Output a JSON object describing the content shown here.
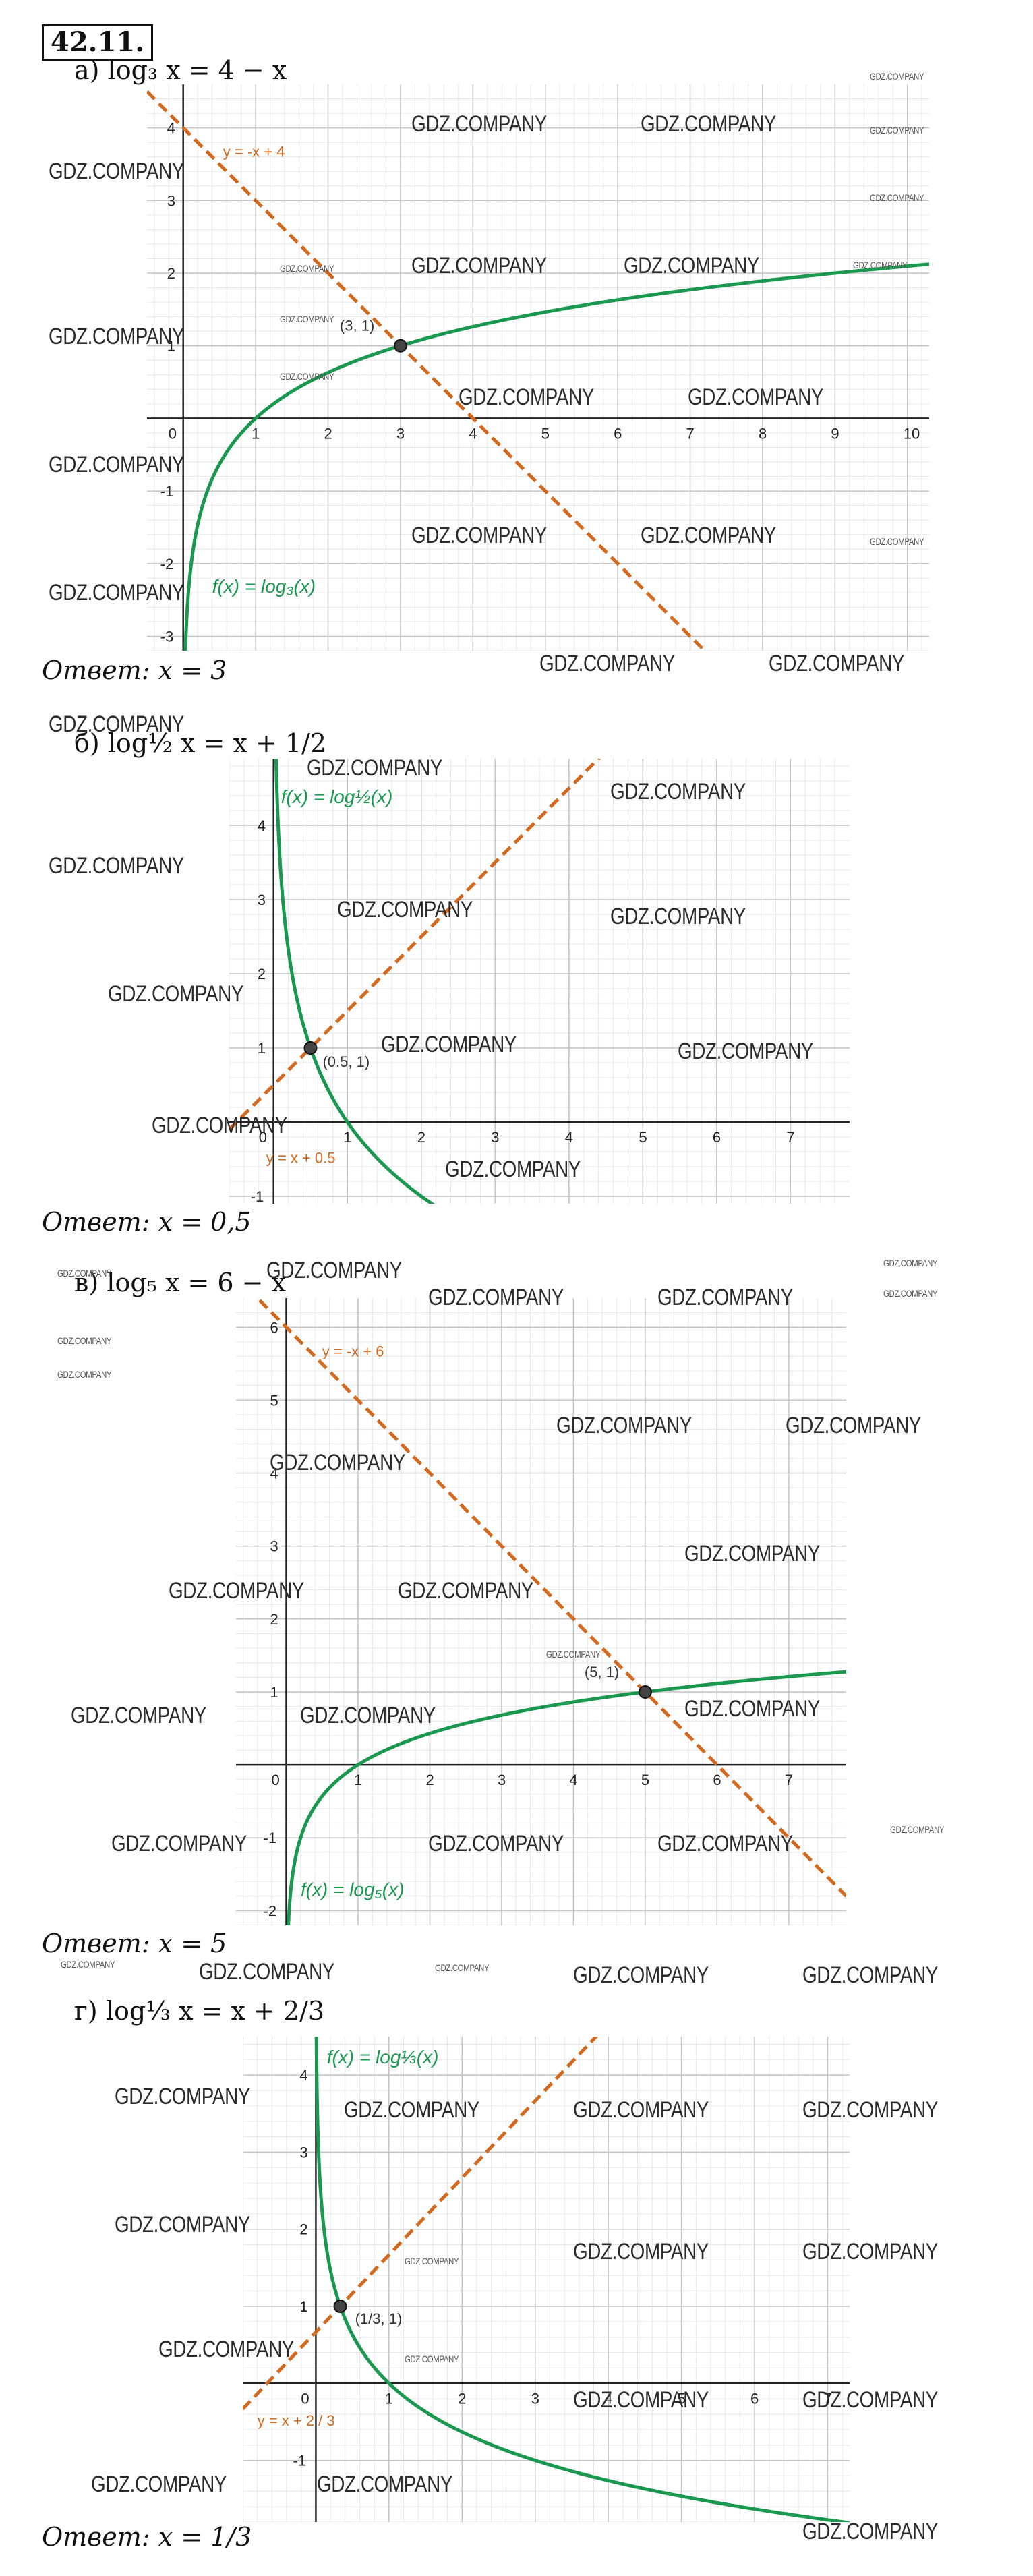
{
  "header": {
    "problem_number": "42.11."
  },
  "panels": [
    {
      "id": "a",
      "equation": "а)  log₃ x = 4 − x",
      "answer": "Ответ: x = 3",
      "chart_data": {
        "type": "line",
        "xlim": [
          -0.5,
          10.3
        ],
        "ylim": [
          -3.2,
          4.6
        ],
        "x_ticks": [
          0,
          1,
          2,
          3,
          4,
          5,
          6,
          7,
          8,
          9,
          10
        ],
        "y_ticks": [
          -3,
          -2,
          -1,
          1,
          2,
          3,
          4
        ],
        "grid": true,
        "series": [
          {
            "name": "f(x) = log₃(x)",
            "kind": "log",
            "base": 3,
            "color": "#1a9850"
          },
          {
            "name": "y = -x + 4",
            "kind": "linear",
            "slope": -1,
            "intercept": 4,
            "color": "#d2691e",
            "dashed": true
          }
        ],
        "points": [
          {
            "label": "(3, 1)",
            "x": 3,
            "y": 1
          }
        ]
      }
    },
    {
      "id": "b",
      "equation": "б)  log½ x = x + 1/2",
      "answer": "Ответ: x = 0,5",
      "chart_data": {
        "type": "line",
        "xlim": [
          -0.6,
          7.8
        ],
        "ylim": [
          -1.1,
          4.9
        ],
        "x_ticks": [
          0,
          1,
          2,
          3,
          4,
          5,
          6,
          7
        ],
        "y_ticks": [
          -1,
          1,
          2,
          3,
          4
        ],
        "grid": true,
        "series": [
          {
            "name": "f(x) = log½(x)",
            "kind": "log",
            "base": 0.5,
            "color": "#1a9850"
          },
          {
            "name": "y = x + 0.5",
            "kind": "linear",
            "slope": 1,
            "intercept": 0.5,
            "color": "#d2691e",
            "dashed": true
          }
        ],
        "points": [
          {
            "label": "(0.5, 1)",
            "x": 0.5,
            "y": 1
          }
        ]
      }
    },
    {
      "id": "v",
      "equation": "в)  log₅ x = 6 − x",
      "answer": "Ответ: x = 5",
      "chart_data": {
        "type": "line",
        "xlim": [
          -0.7,
          7.8
        ],
        "ylim": [
          -2.2,
          6.4
        ],
        "x_ticks": [
          0,
          1,
          2,
          3,
          4,
          5,
          6,
          7
        ],
        "y_ticks": [
          -2,
          -1,
          1,
          2,
          3,
          4,
          5,
          6
        ],
        "grid": true,
        "series": [
          {
            "name": "f(x) = log₅(x)",
            "kind": "log",
            "base": 5,
            "color": "#1a9850"
          },
          {
            "name": "y = -x + 6",
            "kind": "linear",
            "slope": -1,
            "intercept": 6,
            "color": "#d2691e",
            "dashed": true
          }
        ],
        "points": [
          {
            "label": "(5, 1)",
            "x": 5,
            "y": 1
          }
        ]
      }
    },
    {
      "id": "g",
      "equation": "г)  log⅓ x = x + 2/3",
      "answer": "Ответ: x = 1/3",
      "chart_data": {
        "type": "line",
        "xlim": [
          -1.0,
          7.3
        ],
        "ylim": [
          -1.8,
          4.5
        ],
        "x_ticks": [
          0,
          1,
          2,
          3,
          4,
          5,
          6,
          7
        ],
        "y_ticks": [
          -1,
          1,
          2,
          3,
          4
        ],
        "grid": true,
        "series": [
          {
            "name": "f(x) = log⅓(x)",
            "kind": "log",
            "base": 0.3333333,
            "color": "#1a9850"
          },
          {
            "name": "y = x + 2 / 3",
            "kind": "linear",
            "slope": 1,
            "intercept": 0.6666667,
            "color": "#d2691e",
            "dashed": true
          }
        ],
        "points": [
          {
            "label": "(1/3,  1)",
            "x": 0.3333333,
            "y": 1
          }
        ]
      }
    }
  ],
  "watermark": {
    "text": "GDZ.COMPANY"
  }
}
